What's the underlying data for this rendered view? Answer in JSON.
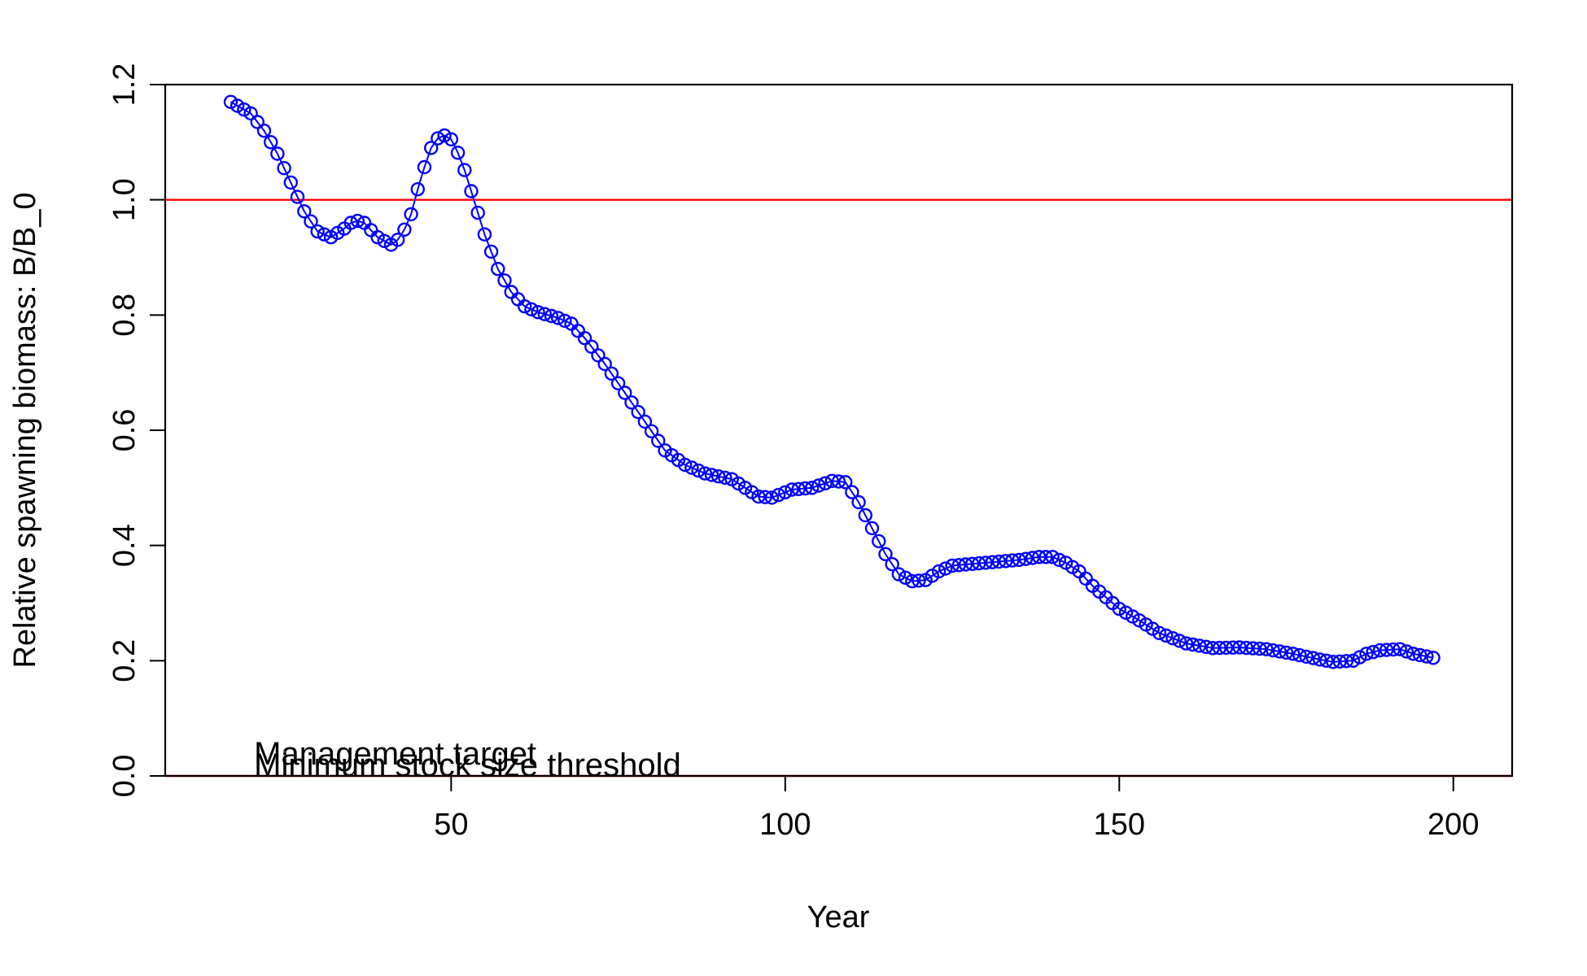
{
  "chart_data": {
    "type": "scatter",
    "title": "",
    "xlabel": "Year",
    "ylabel": "Relative spawning biomass: B/B_0",
    "xlim": [
      7.2,
      208.8
    ],
    "ylim": [
      0,
      1.2
    ],
    "x_ticks": [
      50,
      100,
      150,
      200
    ],
    "y_ticks": [
      0.0,
      0.2,
      0.4,
      0.6,
      0.8,
      1.0,
      1.2
    ],
    "x_tick_labels": [
      "50",
      "100",
      "150",
      "200"
    ],
    "y_tick_labels": [
      "0.0",
      "0.2",
      "0.4",
      "0.6",
      "0.8",
      "1.0",
      "1.2"
    ],
    "grid": false,
    "legend": "none",
    "point_color": "#0000ff",
    "line_color": "#ff0000",
    "reference_lines": [
      {
        "y": 1.0,
        "color": "#ff0000"
      },
      {
        "y": 0.0,
        "color": "#ff0000"
      }
    ],
    "annotations": [
      {
        "text": "Management target",
        "x": 20.5,
        "y": 0.0
      },
      {
        "text": "Minimum stock size threshold",
        "x": 20.5,
        "y": 0.0
      }
    ],
    "anchors": [
      [
        17,
        1.17
      ],
      [
        20,
        1.15
      ],
      [
        22,
        1.12
      ],
      [
        24,
        1.08
      ],
      [
        26,
        1.03
      ],
      [
        28,
        0.98
      ],
      [
        30,
        0.945
      ],
      [
        32,
        0.935
      ],
      [
        34,
        0.95
      ],
      [
        35.5,
        0.965
      ],
      [
        37,
        0.96
      ],
      [
        39,
        0.935
      ],
      [
        41,
        0.922
      ],
      [
        42.5,
        0.935
      ],
      [
        44,
        0.975
      ],
      [
        45.5,
        1.04
      ],
      [
        47,
        1.09
      ],
      [
        48.5,
        1.115
      ],
      [
        50,
        1.105
      ],
      [
        51.5,
        1.07
      ],
      [
        53,
        1.015
      ],
      [
        55,
        0.94
      ],
      [
        57,
        0.88
      ],
      [
        59,
        0.84
      ],
      [
        61,
        0.815
      ],
      [
        63,
        0.805
      ],
      [
        66,
        0.795
      ],
      [
        68,
        0.785
      ],
      [
        70,
        0.76
      ],
      [
        73,
        0.715
      ],
      [
        76,
        0.665
      ],
      [
        79,
        0.615
      ],
      [
        82,
        0.565
      ],
      [
        85,
        0.54
      ],
      [
        88,
        0.525
      ],
      [
        92,
        0.515
      ],
      [
        94,
        0.5
      ],
      [
        96,
        0.485
      ],
      [
        98,
        0.483
      ],
      [
        101,
        0.497
      ],
      [
        104,
        0.5
      ],
      [
        107,
        0.512
      ],
      [
        109,
        0.51
      ],
      [
        111,
        0.475
      ],
      [
        113,
        0.43
      ],
      [
        115,
        0.385
      ],
      [
        117,
        0.35
      ],
      [
        119,
        0.338
      ],
      [
        121,
        0.34
      ],
      [
        123,
        0.355
      ],
      [
        125,
        0.365
      ],
      [
        130,
        0.37
      ],
      [
        135,
        0.375
      ],
      [
        138,
        0.38
      ],
      [
        140,
        0.38
      ],
      [
        142,
        0.37
      ],
      [
        144,
        0.355
      ],
      [
        146,
        0.33
      ],
      [
        148,
        0.31
      ],
      [
        150,
        0.29
      ],
      [
        153,
        0.27
      ],
      [
        156,
        0.248
      ],
      [
        160,
        0.23
      ],
      [
        164,
        0.222
      ],
      [
        168,
        0.223
      ],
      [
        172,
        0.22
      ],
      [
        176,
        0.212
      ],
      [
        180,
        0.202
      ],
      [
        182,
        0.198
      ],
      [
        185,
        0.2
      ],
      [
        187,
        0.212
      ],
      [
        189,
        0.218
      ],
      [
        192,
        0.22
      ],
      [
        194,
        0.212
      ],
      [
        197,
        0.205
      ]
    ],
    "x_start": 17,
    "x_end": 197
  }
}
